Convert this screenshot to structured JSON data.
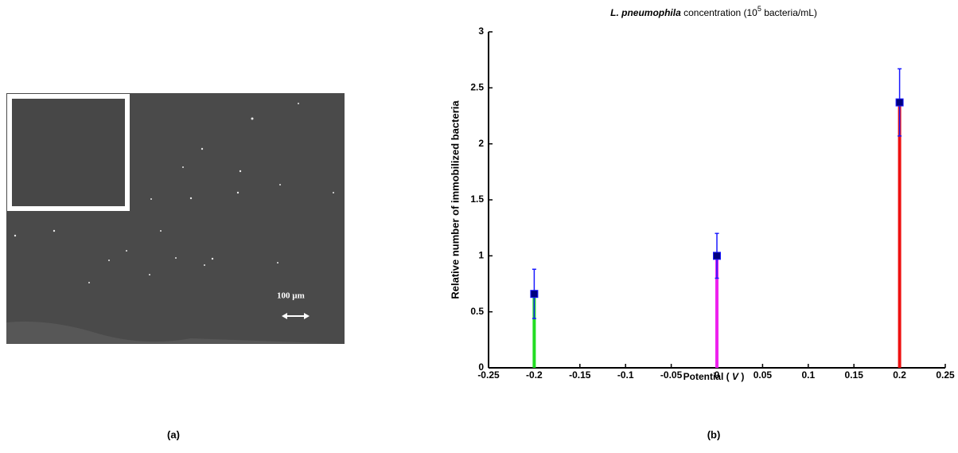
{
  "panels": [
    {
      "label": "(a)",
      "scale_bar": "100 µm"
    },
    {
      "label": "(b)"
    }
  ],
  "chart_data": {
    "type": "errorbar",
    "title": {
      "italic": "L. pneumophila",
      "text": " concentration (10",
      "superscript": "5",
      "suffix": " bacteria/mL)"
    },
    "x_label": {
      "text": "Potential ( ",
      "italic": "V",
      "suffix": " )"
    },
    "y_label": "Relative number of immobilized bacteria",
    "x": [
      -0.2,
      0,
      0.2
    ],
    "values": [
      0.66,
      1,
      2.37
    ],
    "errors": [
      0.22,
      0.2,
      0.3
    ],
    "colors": [
      "#22dd22",
      "#ee22ee",
      "#ee1111"
    ],
    "marker_color": "#000080",
    "error_color": "#1a1aff",
    "xlim": [
      -0.25,
      0.25
    ],
    "xticks": [
      -0.25,
      -0.2,
      -0.15,
      -0.1,
      -0.05,
      0,
      0.05,
      0.1,
      0.15,
      0.2,
      0.25
    ],
    "ylim": [
      0,
      3
    ],
    "yticks": [
      0,
      0.5,
      1,
      1.5,
      2,
      2.5,
      3
    ]
  }
}
